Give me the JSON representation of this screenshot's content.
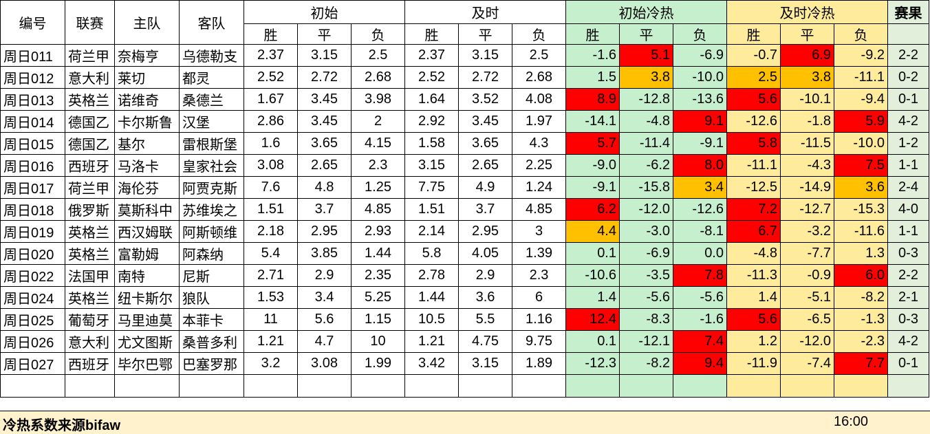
{
  "headers": {
    "id": "编号",
    "league": "联赛",
    "home": "主队",
    "away": "客队",
    "initial": "初始",
    "live": "及时",
    "initial_heat": "初始冷热",
    "live_heat": "及时冷热",
    "result": "赛果",
    "win": "胜",
    "draw": "平",
    "loss": "负"
  },
  "colors": {
    "hot": "#ff0000",
    "warm": "#ffc000",
    "green": "#c6efce",
    "yellow": "#ffeb9c"
  },
  "rows": [
    {
      "id": "周日011",
      "league": "荷兰甲",
      "home": "奈梅亨",
      "away": "乌德勒支",
      "i": [
        "2.37",
        "3.15",
        "2.5"
      ],
      "l": [
        "2.37",
        "3.15",
        "2.5"
      ],
      "ih": [
        "-1.6",
        "5.1",
        "-6.9"
      ],
      "lh": [
        "-0.7",
        "6.9",
        "-9.2"
      ],
      "res": "2-2",
      "ihc": [
        "",
        "hot",
        ""
      ],
      "lhc": [
        "",
        "hot",
        ""
      ]
    },
    {
      "id": "周日012",
      "league": "意大利",
      "home": "莱切",
      "away": "都灵",
      "i": [
        "2.52",
        "2.72",
        "2.68"
      ],
      "l": [
        "2.52",
        "2.72",
        "2.68"
      ],
      "ih": [
        "1.5",
        "3.8",
        "-10.0"
      ],
      "lh": [
        "2.5",
        "3.8",
        "-11.1"
      ],
      "res": "0-2",
      "ihc": [
        "",
        "warm",
        ""
      ],
      "lhc": [
        "warm",
        "warm",
        ""
      ]
    },
    {
      "id": "周日013",
      "league": "英格兰",
      "home": "诺维奇",
      "away": "桑德兰",
      "i": [
        "1.67",
        "3.45",
        "3.98"
      ],
      "l": [
        "1.64",
        "3.52",
        "4.08"
      ],
      "ih": [
        "8.9",
        "-12.8",
        "-13.6"
      ],
      "lh": [
        "5.6",
        "-10.1",
        "-9.4"
      ],
      "res": "0-1",
      "ihc": [
        "hot",
        "",
        ""
      ],
      "lhc": [
        "hot",
        "",
        ""
      ]
    },
    {
      "id": "周日014",
      "league": "德国乙",
      "home": "卡尔斯鲁",
      "away": "汉堡",
      "i": [
        "2.86",
        "3.45",
        "2"
      ],
      "l": [
        "2.92",
        "3.45",
        "1.97"
      ],
      "ih": [
        "-14.1",
        "-4.8",
        "9.1"
      ],
      "lh": [
        "-12.6",
        "-1.8",
        "5.9"
      ],
      "res": "4-2",
      "ihc": [
        "",
        "",
        "hot"
      ],
      "lhc": [
        "",
        "",
        "hot"
      ]
    },
    {
      "id": "周日015",
      "league": "德国乙",
      "home": "基尔",
      "away": "雷根斯堡",
      "i": [
        "1.6",
        "3.65",
        "4.15"
      ],
      "l": [
        "1.58",
        "3.65",
        "4.3"
      ],
      "ih": [
        "5.7",
        "-11.4",
        "-9.1"
      ],
      "lh": [
        "5.8",
        "-11.5",
        "-10.0"
      ],
      "res": "1-2",
      "ihc": [
        "hot",
        "",
        ""
      ],
      "lhc": [
        "hot",
        "",
        ""
      ]
    },
    {
      "id": "周日016",
      "league": "西班牙",
      "home": "马洛卡",
      "away": "皇家社会",
      "i": [
        "3.08",
        "2.65",
        "2.3"
      ],
      "l": [
        "3.15",
        "2.65",
        "2.25"
      ],
      "ih": [
        "-9.0",
        "-6.2",
        "8.0"
      ],
      "lh": [
        "-11.1",
        "-4.3",
        "7.5"
      ],
      "res": "1-1",
      "ihc": [
        "",
        "",
        "hot"
      ],
      "lhc": [
        "",
        "",
        "hot"
      ]
    },
    {
      "id": "周日017",
      "league": "荷兰甲",
      "home": "海伦芬",
      "away": "阿贾克斯",
      "i": [
        "7.6",
        "4.8",
        "1.25"
      ],
      "l": [
        "7.75",
        "4.9",
        "1.24"
      ],
      "ih": [
        "-9.1",
        "-15.8",
        "3.4"
      ],
      "lh": [
        "-12.5",
        "-14.9",
        "3.6"
      ],
      "res": "2-4",
      "ihc": [
        "",
        "",
        "warm"
      ],
      "lhc": [
        "",
        "",
        "warm"
      ]
    },
    {
      "id": "周日018",
      "league": "俄罗斯",
      "home": "莫斯科中",
      "away": "苏维埃之",
      "i": [
        "1.51",
        "3.7",
        "4.85"
      ],
      "l": [
        "1.51",
        "3.7",
        "4.85"
      ],
      "ih": [
        "6.2",
        "-12.0",
        "-12.6"
      ],
      "lh": [
        "7.2",
        "-12.7",
        "-15.3"
      ],
      "res": "4-0",
      "ihc": [
        "hot",
        "",
        ""
      ],
      "lhc": [
        "hot",
        "",
        ""
      ]
    },
    {
      "id": "周日019",
      "league": "英格兰",
      "home": "西汉姆联",
      "away": "阿斯顿维",
      "i": [
        "2.18",
        "2.95",
        "2.93"
      ],
      "l": [
        "2.14",
        "2.95",
        "3"
      ],
      "ih": [
        "4.4",
        "-3.0",
        "-8.1"
      ],
      "lh": [
        "6.7",
        "-3.2",
        "-11.6"
      ],
      "res": "1-1",
      "ihc": [
        "warm",
        "",
        ""
      ],
      "lhc": [
        "hot",
        "",
        ""
      ]
    },
    {
      "id": "周日020",
      "league": "英格兰",
      "home": "富勒姆",
      "away": "阿森纳",
      "i": [
        "5.4",
        "3.85",
        "1.44"
      ],
      "l": [
        "5.8",
        "4.05",
        "1.39"
      ],
      "ih": [
        "0.1",
        "-6.9",
        "0.0"
      ],
      "lh": [
        "-4.8",
        "-7.7",
        "1.3"
      ],
      "res": "0-3",
      "ihc": [
        "",
        "",
        ""
      ],
      "lhc": [
        "",
        "",
        ""
      ]
    },
    {
      "id": "周日022",
      "league": "法国甲",
      "home": "南特",
      "away": "尼斯",
      "i": [
        "2.71",
        "2.9",
        "2.35"
      ],
      "l": [
        "2.78",
        "2.9",
        "2.3"
      ],
      "ih": [
        "-10.6",
        "-3.5",
        "7.8"
      ],
      "lh": [
        "-11.3",
        "-0.9",
        "6.0"
      ],
      "res": "2-2",
      "ihc": [
        "",
        "",
        "hot"
      ],
      "lhc": [
        "",
        "",
        "hot"
      ]
    },
    {
      "id": "周日024",
      "league": "英格兰",
      "home": "纽卡斯尔",
      "away": "狼队",
      "i": [
        "1.53",
        "3.4",
        "5.25"
      ],
      "l": [
        "1.44",
        "3.6",
        "6"
      ],
      "ih": [
        "1.4",
        "-5.6",
        "-5.6"
      ],
      "lh": [
        "1.4",
        "-5.1",
        "-8.2"
      ],
      "res": "2-1",
      "ihc": [
        "",
        "",
        ""
      ],
      "lhc": [
        "",
        "",
        ""
      ]
    },
    {
      "id": "周日025",
      "league": "葡萄牙",
      "home": "马里迪莫",
      "away": "本菲卡",
      "i": [
        "11",
        "5.6",
        "1.15"
      ],
      "l": [
        "10.5",
        "5.5",
        "1.16"
      ],
      "ih": [
        "12.4",
        "-8.3",
        "-1.6"
      ],
      "lh": [
        "5.6",
        "-6.5",
        "-1.3"
      ],
      "res": "0-3",
      "ihc": [
        "hot",
        "",
        ""
      ],
      "lhc": [
        "hot",
        "",
        ""
      ]
    },
    {
      "id": "周日026",
      "league": "意大利",
      "home": "尤文图斯",
      "away": "桑普多利",
      "i": [
        "1.21",
        "4.7",
        "10"
      ],
      "l": [
        "1.21",
        "4.75",
        "9.75"
      ],
      "ih": [
        "0.1",
        "-12.1",
        "7.4"
      ],
      "lh": [
        "1.2",
        "-12.0",
        "-2.3"
      ],
      "res": "4-2",
      "ihc": [
        "",
        "",
        "hot"
      ],
      "lhc": [
        "",
        "",
        ""
      ]
    },
    {
      "id": "周日027",
      "league": "西班牙",
      "home": "毕尔巴鄂",
      "away": "巴塞罗那",
      "i": [
        "3.2",
        "3.08",
        "1.99"
      ],
      "l": [
        "3.42",
        "3.15",
        "1.89"
      ],
      "ih": [
        "-12.3",
        "-8.2",
        "9.4"
      ],
      "lh": [
        "-11.9",
        "-7.4",
        "7.7"
      ],
      "res": "0-1",
      "ihc": [
        "",
        "",
        "hot"
      ],
      "lhc": [
        "",
        "",
        "hot"
      ]
    }
  ],
  "footer": {
    "source": "冷热系数来源bifaw",
    "time": "16:00"
  }
}
